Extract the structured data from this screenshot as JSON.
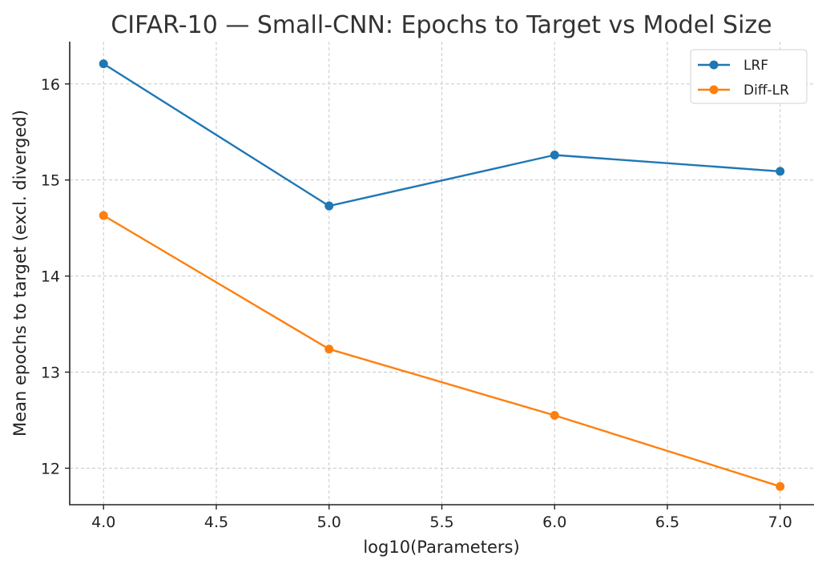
{
  "chart_data": {
    "type": "line",
    "title": "CIFAR-10 — Small-CNN: Epochs to Target vs Model Size",
    "xlabel": "log10(Parameters)",
    "ylabel": "Mean epochs to target (excl. diverged)",
    "x": [
      4.0,
      5.0,
      6.0,
      7.0
    ],
    "xlim": [
      3.85,
      7.15
    ],
    "ylim": [
      11.62,
      16.44
    ],
    "xticks": [
      "4.0",
      "4.5",
      "5.0",
      "5.5",
      "6.0",
      "6.5",
      "7.0"
    ],
    "yticks": [
      "12",
      "13",
      "14",
      "15",
      "16"
    ],
    "grid": true,
    "legend_position": "top-right",
    "series": [
      {
        "name": "LRF",
        "color": "#1f77b4",
        "values": [
          16.21,
          14.73,
          15.26,
          15.09
        ]
      },
      {
        "name": "Diff-LR",
        "color": "#ff7f0e",
        "values": [
          14.63,
          13.24,
          12.55,
          11.81
        ]
      }
    ]
  }
}
